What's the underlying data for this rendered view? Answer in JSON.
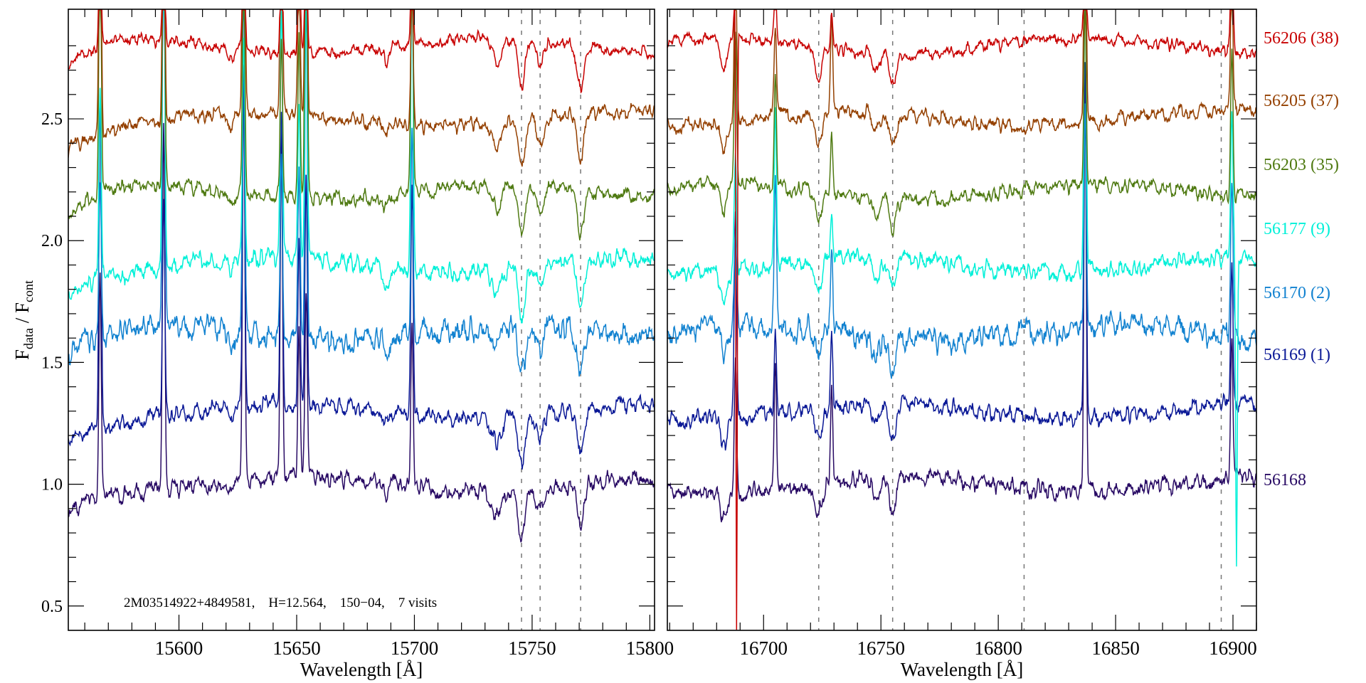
{
  "chart_data": {
    "type": "line",
    "title": "",
    "ylabel": {
      "main": "F",
      "sub1": "data",
      "sep": " / F",
      "sub2": "cont"
    },
    "ylim": [
      0.4,
      2.95
    ],
    "yticks": [
      0.5,
      1.0,
      1.5,
      2.0,
      2.5
    ],
    "ytick_labels": [
      "0.5",
      "1.0",
      "1.5",
      "2.0",
      "2.5"
    ],
    "annotation": "2M03514922+4849581,    H=12.564,    150−04,    7 visits",
    "panels": [
      {
        "xlabel": "Wavelength [Å]",
        "xlim": [
          15553,
          15802
        ],
        "xticks": [
          15600,
          15650,
          15700,
          15750,
          15800
        ],
        "xtick_labels": [
          "15600",
          "15650",
          "15700",
          "15750",
          "15800"
        ],
        "dashed_lines": [
          15745.5,
          15753.4,
          15770.6
        ],
        "emission": [
          [
            15566.5,
            1.0
          ],
          [
            15593.5,
            1.4
          ],
          [
            15627.5,
            1.4
          ],
          [
            15643.5,
            1.0
          ],
          [
            15651,
            1.3
          ],
          [
            15654,
            1.2
          ],
          [
            15699,
            0.9
          ]
        ],
        "absorption": [
          [
            15745.5,
            0.2,
            2.0
          ],
          [
            15753.4,
            0.1,
            2.0
          ],
          [
            15770.6,
            0.18,
            2.0
          ],
          [
            15735,
            0.1,
            2.5
          ],
          [
            15622,
            0.06,
            1.5
          ],
          [
            15688,
            0.06,
            1.5
          ]
        ]
      },
      {
        "xlabel": "Wavelength [Å]",
        "xlim": [
          16659,
          16910
        ],
        "xticks": [
          16700,
          16750,
          16800,
          16850,
          16900
        ],
        "xtick_labels": [
          "16700",
          "16750",
          "16800",
          "16850",
          "16900"
        ],
        "dashed_lines": [
          16723.5,
          16755,
          16811,
          16895
        ],
        "emission": [
          [
            16688,
            0.6
          ],
          [
            16705,
            0.5
          ],
          [
            16729,
            0.3
          ],
          [
            16837,
            1.2
          ],
          [
            16899.5,
            1.2
          ]
        ],
        "absorption": [
          [
            16683,
            0.12,
            2.0
          ],
          [
            16723.5,
            0.12,
            2.0
          ],
          [
            16755,
            0.14,
            2.0
          ],
          [
            16748,
            0.08,
            2.0
          ]
        ]
      }
    ],
    "series": [
      {
        "name": "56206",
        "label": "56206 (38)",
        "color": "#c80000",
        "offset": 1.8,
        "noise": 0.025,
        "seed": 7
      },
      {
        "name": "56205",
        "label": "56205 (37)",
        "color": "#944000",
        "offset": 1.5,
        "noise": 0.03,
        "seed": 11
      },
      {
        "name": "56203",
        "label": "56203 (35)",
        "color": "#4f7a12",
        "offset": 1.2,
        "noise": 0.03,
        "seed": 13
      },
      {
        "name": "56177",
        "label": "56177 (9)",
        "color": "#00f0d8",
        "offset": 0.9,
        "noise": 0.035,
        "seed": 17
      },
      {
        "name": "56170",
        "label": "56170 (2)",
        "color": "#1282d0",
        "offset": 0.62,
        "noise": 0.05,
        "seed": 19
      },
      {
        "name": "56169",
        "label": "56169 (1)",
        "color": "#0a1896",
        "offset": 0.3,
        "noise": 0.035,
        "seed": 23
      },
      {
        "name": "56168",
        "label": "56168",
        "color": "#280a64",
        "offset": 0.0,
        "noise": 0.035,
        "seed": 29
      }
    ]
  }
}
